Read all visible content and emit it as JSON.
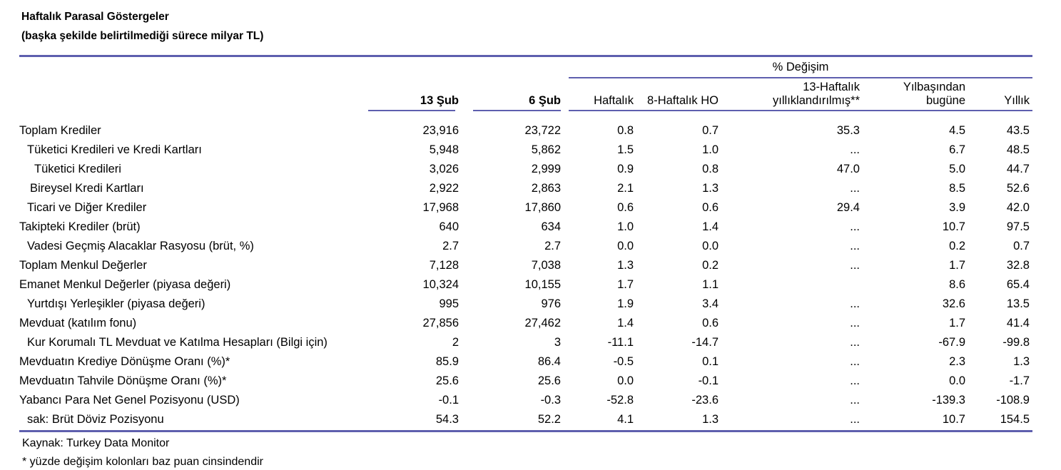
{
  "report": {
    "title": "Haftalık Parasal Göstergeler",
    "subtitle": "(başka şekilde belirtilmediği sürece milyar TL)"
  },
  "table": {
    "pct_change_header": "% Değişim",
    "columns": [
      {
        "line1": "13 Şub"
      },
      {
        "line1": "6 Şub"
      },
      {
        "line1": "Haftalık"
      },
      {
        "line1": "8-Haftalık HO"
      },
      {
        "line1": "13-Haftalık",
        "line2": "yıllıklandırılmış**"
      },
      {
        "line1": "Yılbaşından",
        "line2": "bugüne"
      },
      {
        "line1": "Yıllık"
      }
    ],
    "rows": [
      {
        "label": "Toplam Krediler",
        "indent": 0,
        "values": [
          "23,916",
          "23,722",
          "0.8",
          "0.7",
          "35.3",
          "4.5",
          "43.5"
        ]
      },
      {
        "label": "Tüketici Kredileri ve Kredi Kartları",
        "indent": 11,
        "values": [
          "5,948",
          "5,862",
          "1.5",
          "1.0",
          "...",
          "6.7",
          "48.5"
        ]
      },
      {
        "label": "Tüketici Kredileri",
        "indent": 21,
        "values": [
          "3,026",
          "2,999",
          "0.9",
          "0.8",
          "47.0",
          "5.0",
          "44.7"
        ]
      },
      {
        "label": "Bireysel Kredi Kartları",
        "indent": 15,
        "values": [
          "2,922",
          "2,863",
          "2.1",
          "1.3",
          "...",
          "8.5",
          "52.6"
        ]
      },
      {
        "label": "Ticari ve Diğer Krediler",
        "indent": 11,
        "values": [
          "17,968",
          "17,860",
          "0.6",
          "0.6",
          "29.4",
          "3.9",
          "42.0"
        ]
      },
      {
        "label": "Takipteki Krediler (brüt)",
        "indent": 0,
        "values": [
          "640",
          "634",
          "1.0",
          "1.4",
          "...",
          "10.7",
          "97.5"
        ]
      },
      {
        "label": "Vadesi Geçmiş Alacaklar Rasyosu (brüt, %)",
        "indent": 11,
        "values": [
          "2.7",
          "2.7",
          "0.0",
          "0.0",
          "...",
          "0.2",
          "0.7"
        ]
      },
      {
        "label": "Toplam Menkul Değerler",
        "indent": 0,
        "values": [
          "7,128",
          "7,038",
          "1.3",
          "0.2",
          "...",
          "1.7",
          "32.8"
        ]
      },
      {
        "label": "Emanet Menkul Değerler (piyasa değeri)",
        "indent": 0,
        "values": [
          "10,324",
          "10,155",
          "1.7",
          "1.1",
          "",
          "8.6",
          "65.4"
        ]
      },
      {
        "label": "Yurtdışı Yerleşikler (piyasa değeri)",
        "indent": 11,
        "values": [
          "995",
          "976",
          "1.9",
          "3.4",
          "...",
          "32.6",
          "13.5"
        ]
      },
      {
        "label": "Mevduat (katılım fonu)",
        "indent": 0,
        "values": [
          "27,856",
          "27,462",
          "1.4",
          "0.6",
          "...",
          "1.7",
          "41.4"
        ]
      },
      {
        "label": "Kur Korumalı TL Mevduat ve Katılma Hesapları (Bilgi için)",
        "indent": 11,
        "values": [
          "2",
          "3",
          "-11.1",
          "-14.7",
          "...",
          "-67.9",
          "-99.8"
        ]
      },
      {
        "label": "Mevduatın Krediye Dönüşme Oranı (%)*",
        "indent": 0,
        "values": [
          "85.9",
          "86.4",
          "-0.5",
          "0.1",
          "...",
          "2.3",
          "1.3"
        ]
      },
      {
        "label": "Mevduatın Tahvile Dönüşme Oranı (%)*",
        "indent": 0,
        "values": [
          "25.6",
          "25.6",
          "0.0",
          "-0.1",
          "...",
          "0.0",
          "-1.7"
        ]
      },
      {
        "label": "Yabancı Para Net Genel Pozisyonu (USD)",
        "indent": 0,
        "values": [
          "-0.1",
          "-0.3",
          "-52.8",
          "-23.6",
          "...",
          "-139.3",
          "-108.9"
        ]
      },
      {
        "label": "sak: Brüt Döviz Pozisyonu",
        "indent": 11,
        "values": [
          "54.3",
          "52.2",
          "4.1",
          "1.3",
          "...",
          "10.7",
          "154.5"
        ]
      }
    ]
  },
  "footer": {
    "source": "Kaynak: Turkey Data Monitor",
    "footnote": "* yüzde değişim kolonları baz puan cinsindendir"
  },
  "colors": {
    "rule": "#5e5fae",
    "text": "#000000",
    "background": "#ffffff"
  }
}
